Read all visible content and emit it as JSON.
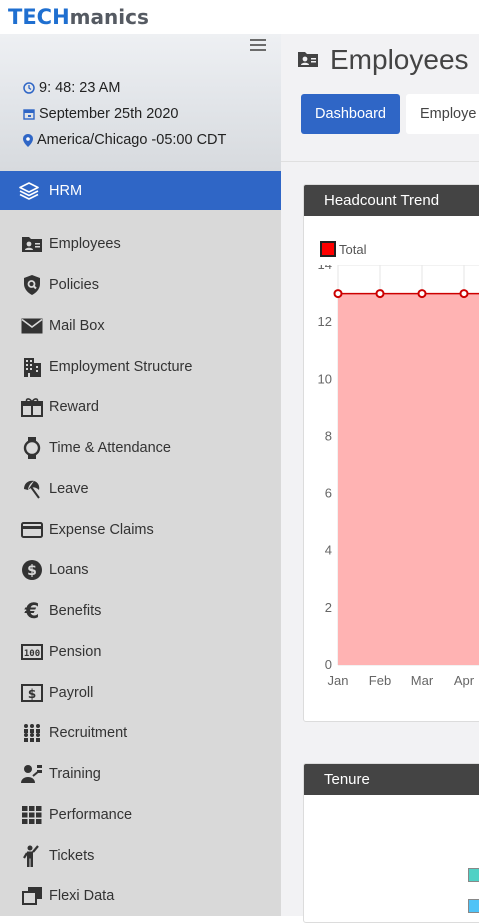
{
  "brand": {
    "part1": "TECH",
    "part2": "manics"
  },
  "clock": {
    "time": "9: 48: 23 AM",
    "date": "September 25th 2020",
    "timezone": "America/Chicago -05:00 CDT"
  },
  "sidebar": {
    "section": "HRM",
    "items": [
      {
        "label": "Employees",
        "icon": "employee-badge-icon"
      },
      {
        "label": "Policies",
        "icon": "shield-search-icon"
      },
      {
        "label": "Mail Box",
        "icon": "envelope-icon"
      },
      {
        "label": "Employment Structure",
        "icon": "building-icon"
      },
      {
        "label": "Reward",
        "icon": "gift-icon"
      },
      {
        "label": "Time & Attendance",
        "icon": "watch-icon"
      },
      {
        "label": "Leave",
        "icon": "beach-umbrella-icon"
      },
      {
        "label": "Expense Claims",
        "icon": "credit-card-icon"
      },
      {
        "label": "Loans",
        "icon": "dollar-circle-icon"
      },
      {
        "label": "Benefits",
        "icon": "euro-icon"
      },
      {
        "label": "Pension",
        "icon": "pension-icon"
      },
      {
        "label": "Payroll",
        "icon": "money-bill-icon"
      },
      {
        "label": "Recruitment",
        "icon": "people-group-icon"
      },
      {
        "label": "Training",
        "icon": "trainer-icon"
      },
      {
        "label": "Performance",
        "icon": "grid-icon"
      },
      {
        "label": "Tickets",
        "icon": "person-hand-raised-icon"
      },
      {
        "label": "Flexi Data",
        "icon": "clone-icon"
      }
    ]
  },
  "page": {
    "title": "Employees",
    "tabs": [
      {
        "label": "Dashboard",
        "active": true
      },
      {
        "label": "Employe",
        "active": false
      }
    ]
  },
  "cards": {
    "trend_title": "Headcount Trend",
    "tenure_title": "Tenure"
  },
  "chart_data": {
    "type": "area",
    "title": "Headcount Trend",
    "legend": [
      "Total"
    ],
    "legend_placement": "top-left",
    "categories": [
      "Jan",
      "Feb",
      "Mar",
      "Apr"
    ],
    "series": [
      {
        "name": "Total",
        "values": [
          13,
          13,
          13,
          13
        ]
      }
    ],
    "yticks": [
      0,
      2,
      4,
      6,
      8,
      10,
      12,
      14
    ],
    "ylim": [
      0,
      14
    ],
    "grid": true,
    "colors": {
      "line": "#cc0000",
      "fill": "#ffb3b3"
    }
  }
}
